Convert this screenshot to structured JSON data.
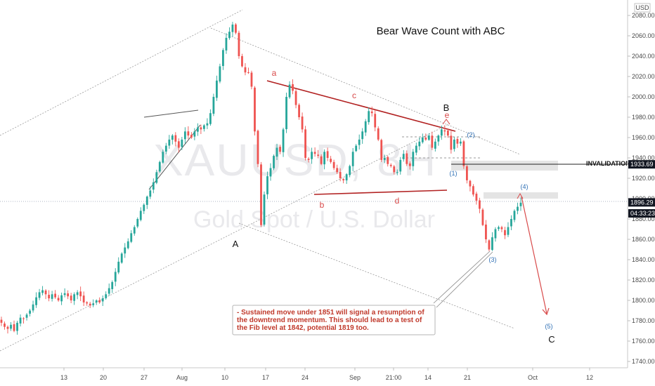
{
  "chart_data": {
    "type": "candlestick",
    "title": "Bear Wave Count with ABC",
    "watermark_symbol": "XAUUSD, 8H",
    "watermark_name": "Gold Spot / U.S. Dollar",
    "currency": "USD",
    "ylim": [
      1730,
      2090
    ],
    "y_ticks": [
      1740,
      1760,
      1780,
      1800,
      1820,
      1840,
      1860,
      1880,
      1900,
      1920,
      1940,
      1960,
      1980,
      2000,
      2020,
      2040,
      2060,
      2080
    ],
    "x_tick_labels": [
      "13",
      "20",
      "27",
      "Aug",
      "10",
      "17",
      "24",
      "Sep",
      "21:00",
      "14",
      "21",
      "Oct",
      "12"
    ],
    "price_tags": [
      {
        "label": "1933.69",
        "value": 1933.69,
        "color": "#131722"
      },
      {
        "label": "1896.29",
        "value": 1896.29,
        "color": "#131722"
      },
      {
        "label": "04:33:23",
        "value": 1885.5,
        "color": "#131722"
      }
    ],
    "closes": [
      1778,
      1774,
      1772,
      1776,
      1770,
      1778,
      1783,
      1782,
      1786,
      1790,
      1796,
      1803,
      1808,
      1810,
      1806,
      1802,
      1806,
      1803,
      1800,
      1805,
      1807,
      1804,
      1800,
      1806,
      1808,
      1804,
      1798,
      1797,
      1795,
      1797,
      1800,
      1798,
      1802,
      1806,
      1812,
      1818,
      1828,
      1838,
      1846,
      1852,
      1858,
      1866,
      1872,
      1880,
      1888,
      1894,
      1902,
      1908,
      1916,
      1926,
      1936,
      1946,
      1952,
      1958,
      1962,
      1956,
      1950,
      1958,
      1966,
      1962,
      1960,
      1966,
      1970,
      1968,
      1972,
      1974,
      1984,
      2000,
      2016,
      2030,
      2046,
      2058,
      2064,
      2071,
      2063,
      2040,
      2030,
      2024,
      2024,
      2010,
      1966,
      1934,
      1874,
      1904,
      1922,
      1930,
      1942,
      1950,
      1946,
      1968,
      2000,
      2012,
      2006,
      1992,
      1980,
      1968,
      1940,
      1938,
      1946,
      1944,
      1942,
      1934,
      1946,
      1940,
      1936,
      1930,
      1926,
      1920,
      1918,
      1924,
      1932,
      1946,
      1952,
      1958,
      1966,
      1976,
      1986,
      1984,
      1970,
      1958,
      1938,
      1940,
      1934,
      1932,
      1926,
      1926,
      1938,
      1944,
      1934,
      1932,
      1946,
      1952,
      1956,
      1960,
      1958,
      1962,
      1950,
      1956,
      1962,
      1968,
      1966,
      1962,
      1948,
      1958,
      1954,
      1956,
      1932,
      1918,
      1912,
      1904,
      1898,
      1890,
      1874,
      1860,
      1850,
      1862,
      1870,
      1872,
      1870,
      1864,
      1872,
      1880,
      1888,
      1892,
      1896
    ],
    "candle_colors": {
      "up": "#26a69a",
      "down": "#ef5350"
    },
    "waves": {
      "A": "A",
      "B": "B",
      "C": "C",
      "a": "a",
      "b": "b",
      "c": "c",
      "d": "d",
      "e": "e",
      "w1": "(1)",
      "w2": "(2)",
      "w3": "(3)",
      "w4": "(4)",
      "w5": "(5)"
    },
    "invalidation_label": "INVALIDATION Level",
    "note_lines": [
      "- Sustained move under 1851 will signal a resumption of",
      "the downtrend momentum. This should lead to a test of",
      "the Fib level at 1842, potential 1819 too."
    ]
  }
}
